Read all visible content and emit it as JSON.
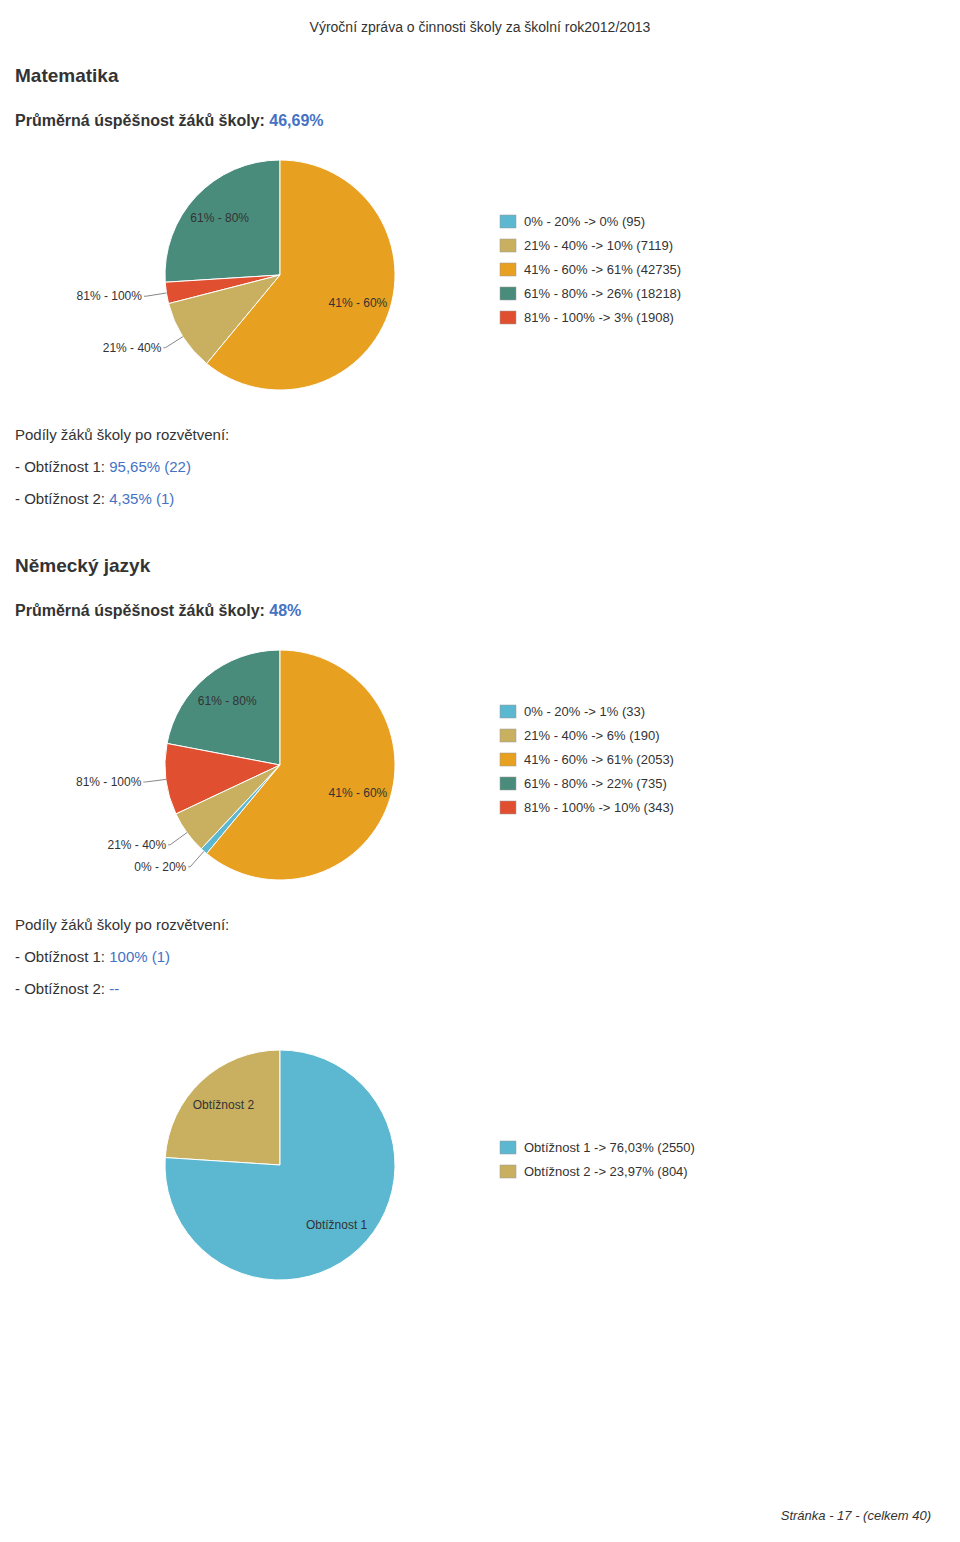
{
  "title": "Výroční zpráva o činnosti školy za školní rok2012/2013",
  "footer": "Stránka - 17 - (celkem 40)",
  "chart_data": [
    {
      "type": "pie",
      "title": "Matematika",
      "categories": [
        "61% - 80%",
        "81% - 100%",
        "21% - 40%",
        "41% - 60%"
      ],
      "values": [
        26,
        3,
        10,
        61
      ],
      "colors": [
        "#4A8C7C",
        "#E05030",
        "#C8B060",
        "#E8A020"
      ],
      "series": [
        {
          "name": "0% - 20% -> 0% (95)",
          "color": "#5BB8D0"
        },
        {
          "name": "21% - 40% -> 10% (7119)",
          "color": "#C8B060"
        },
        {
          "name": "41% - 60% -> 61% (42735)",
          "color": "#E8A020"
        },
        {
          "name": "61% - 80% -> 26% (18218)",
          "color": "#4A8C7C"
        },
        {
          "name": "81% - 100% -> 3% (1908)",
          "color": "#E05030"
        }
      ],
      "annotations": [
        [
          {
            "text": "Průměrná úspěšnost žáků školy: "
          },
          {
            "text": "46,69%",
            "color": "#4472C4"
          }
        ],
        [
          {
            "text": "Podíly žáků školy po rozvětvení:"
          }
        ],
        [
          {
            "text": "- Obtížnost 1: "
          },
          {
            "text": "95,65% (22)",
            "color": "#4472C4"
          }
        ],
        [
          {
            "text": "- Obtížnost 2: "
          },
          {
            "text": "4,35% (1)",
            "color": "#4472C4"
          }
        ]
      ]
    },
    {
      "type": "pie",
      "title": "Německý jazyk",
      "categories": [
        "61% - 80%",
        "81% - 100%",
        "21% - 40%",
        "0% - 20%",
        "41% - 60%"
      ],
      "values": [
        22,
        10,
        6,
        1,
        61
      ],
      "colors": [
        "#4A8C7C",
        "#E05030",
        "#C8B060",
        "#5BB8D0",
        "#E8A020"
      ],
      "series": [
        {
          "name": "0% - 20% -> 1% (33)",
          "color": "#5BB8D0"
        },
        {
          "name": "21% - 40% -> 6% (190)",
          "color": "#C8B060"
        },
        {
          "name": "41% - 60% -> 61% (2053)",
          "color": "#E8A020"
        },
        {
          "name": "61% - 80% -> 22% (735)",
          "color": "#4A8C7C"
        },
        {
          "name": "81% - 100% -> 10% (343)",
          "color": "#E05030"
        }
      ],
      "annotations": [
        [
          {
            "text": "Průměrná úspěšnost žáků školy: "
          },
          {
            "text": "48%",
            "color": "#4472C4"
          }
        ],
        [
          {
            "text": "Podíly žáků školy po rozvětvení:"
          }
        ],
        [
          {
            "text": "- Obtížnost 1: "
          },
          {
            "text": "100% (1)",
            "color": "#4472C4"
          }
        ],
        [
          {
            "text": "- Obtížnost 2: "
          },
          {
            "text": "--",
            "color": "#4472C4"
          }
        ]
      ]
    },
    {
      "type": "pie",
      "categories": [
        "Obtížnost 2",
        "Obtížnost 1"
      ],
      "values": [
        23.97,
        76.03
      ],
      "colors": [
        "#C8B060",
        "#5BB8D0"
      ],
      "series": [
        {
          "name": "Obtížnost 1 -> 76,03% (2550)",
          "color": "#5BB8D0"
        },
        {
          "name": "Obtížnost 2 -> 23,97% (804)",
          "color": "#C8B060"
        }
      ]
    }
  ]
}
